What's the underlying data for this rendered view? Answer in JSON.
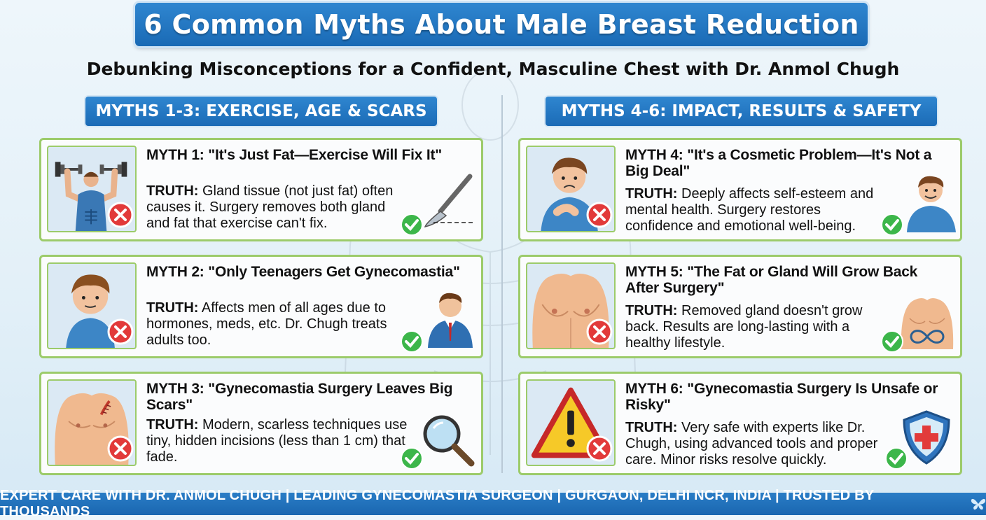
{
  "title": "6 Common Myths About Male Breast Reduction",
  "subtitle": "Debunking Misconceptions for a Confident, Masculine Chest with Dr. Anmol Chugh",
  "sections": [
    {
      "heading": "MYTHS 1-3: EXERCISE, AGE & SCARS"
    },
    {
      "heading": "MYTHS 4-6: IMPACT, RESULTS & SAFETY"
    }
  ],
  "myths": [
    {
      "myth": "MYTH 1: \"It's Just Fat—Exercise Will Fix It\"",
      "truth_label": "TRUTH:",
      "truth": "Gland tissue (not just fat) often causes it. Surgery removes both gland and fat that exercise can't fix.",
      "icon": "dumbbell-man-icon",
      "truth_icon": "scalpel-icon"
    },
    {
      "myth": "MYTH 2: \"Only Teenagers Get Gynecomastia\"",
      "truth_label": "TRUTH:",
      "truth": "Affects men of all ages due to hormones, meds, etc. Dr. Chugh treats adults too.",
      "icon": "teen-boy-icon",
      "truth_icon": "businessman-icon"
    },
    {
      "myth": "MYTH 3: \"Gynecomastia Surgery Leaves Big Scars\"",
      "truth_label": "TRUTH:",
      "truth": "Modern, scarless techniques use tiny, hidden incisions (less than 1 cm) that fade.",
      "icon": "scarred-chest-icon",
      "truth_icon": "magnifier-icon"
    },
    {
      "myth": "MYTH 4: \"It's a Cosmetic Problem—It's Not a Big Deal\"",
      "truth_label": "TRUTH:",
      "truth": "Deeply affects self-esteem and mental health. Surgery restores confidence and emotional well-being.",
      "icon": "sad-man-icon",
      "truth_icon": "happy-man-icon"
    },
    {
      "myth": "MYTH 5: \"The Fat or Gland Will Grow Back After Surgery\"",
      "truth_label": "TRUTH:",
      "truth": "Removed gland doesn't grow back. Results are long-lasting with a healthy lifestyle.",
      "icon": "chest-icon",
      "truth_icon": "infinity-torso-icon"
    },
    {
      "myth": "MYTH 6: \"Gynecomastia Surgery Is Unsafe or Risky\"",
      "truth_label": "TRUTH:",
      "truth": "Very safe with experts like Dr. Chugh, using advanced tools and proper care. Minor risks resolve quickly.",
      "icon": "warning-icon",
      "truth_icon": "medical-shield-icon"
    }
  ],
  "footer": "EXPERT CARE WITH DR. ANMOL CHUGH | LEADING GYNECOMASTIA SURGEON | GURGAON, DELHI NCR, INDIA | TRUSTED BY THOUSANDS",
  "colors": {
    "accent": "#1f73bd",
    "card_border": "#9ccb6a",
    "cross": "#e23a3a",
    "check": "#3cb64a"
  }
}
